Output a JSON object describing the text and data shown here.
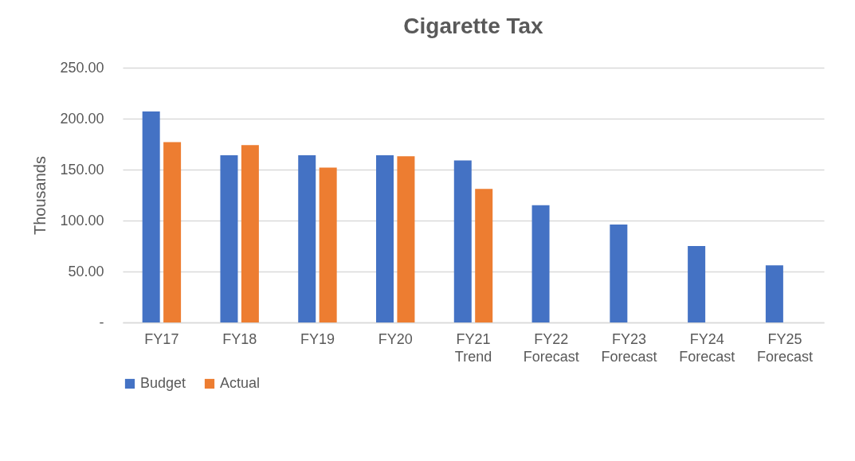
{
  "chart_data": {
    "type": "bar",
    "title": "Cigarette Tax",
    "ylabel": "Thousands",
    "categories": [
      "FY17",
      "FY18",
      "FY19",
      "FY20",
      "FY21\nTrend",
      "FY22\nForecast",
      "FY23\nForecast",
      "FY24\nForecast",
      "FY25\nForecast"
    ],
    "series": [
      {
        "name": "Budget",
        "color": "#4472c4",
        "values": [
          207,
          164,
          164,
          164,
          159,
          115,
          96,
          75,
          56
        ]
      },
      {
        "name": "Actual",
        "color": "#ed7d31",
        "values": [
          177,
          174,
          152,
          163,
          131,
          null,
          null,
          null,
          null
        ]
      }
    ],
    "ylim": [
      0,
      250
    ],
    "yticks": [
      {
        "value": 0,
        "label": "-"
      },
      {
        "value": 50,
        "label": "50.00"
      },
      {
        "value": 100,
        "label": "100.00"
      },
      {
        "value": 150,
        "label": "150.00"
      },
      {
        "value": 200,
        "label": "200.00"
      },
      {
        "value": 250,
        "label": "250.00"
      }
    ],
    "grid": "y",
    "legend": "bottom"
  }
}
